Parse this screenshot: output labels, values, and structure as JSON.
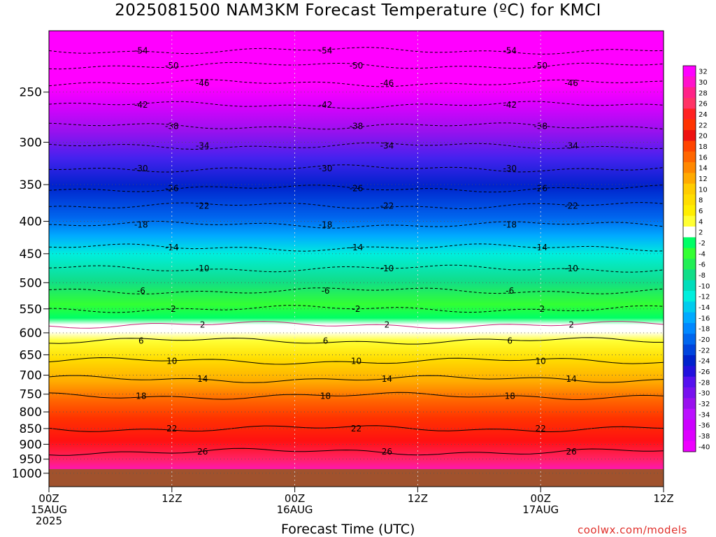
{
  "header": {
    "title": "2025081500 NAM3KM Forecast Temperature (ºC) for KMCI"
  },
  "footer": {
    "xlabel": "Forecast Time (UTC)",
    "watermark": "coolwx.com/models"
  },
  "chart_data": {
    "type": "heatmap",
    "title": "2025081500 NAM3KM Forecast Temperature (ºC) for KMCI",
    "xlabel": "Forecast Time (UTC)",
    "ylabel": "",
    "y_scale": "log-pressure (inverted)",
    "y_unit": "hPa",
    "ylim": [
      1050,
      200
    ],
    "xlim": [
      "2025-08-15T00Z",
      "2025-08-17T12Z"
    ],
    "grid": true,
    "x_ticks": [
      {
        "lines": [
          "00Z",
          "15AUG",
          "2025"
        ],
        "hour": 0
      },
      {
        "lines": [
          "12Z"
        ],
        "hour": 12
      },
      {
        "lines": [
          "00Z",
          "16AUG"
        ],
        "hour": 24
      },
      {
        "lines": [
          "12Z"
        ],
        "hour": 36
      },
      {
        "lines": [
          "00Z",
          "17AUG"
        ],
        "hour": 48
      },
      {
        "lines": [
          "12Z"
        ],
        "hour": 60
      }
    ],
    "y_ticks": [
      250,
      300,
      350,
      400,
      450,
      500,
      550,
      600,
      650,
      700,
      750,
      800,
      850,
      900,
      950,
      1000
    ],
    "colorbar": {
      "position": "right",
      "labels": [
        "32",
        "30",
        "28",
        "26",
        "24",
        "22",
        "20",
        "18",
        "16",
        "14",
        "12",
        "10",
        "8",
        "6",
        "4",
        "2",
        "-2",
        "-4",
        "-6",
        "-8",
        "-10",
        "-12",
        "-14",
        "-16",
        "-18",
        "-20",
        "-22",
        "-24",
        "-26",
        "-28",
        "-30",
        "-32",
        "-34",
        "-36",
        "-38",
        "-40"
      ],
      "colors": [
        "#ff00ff",
        "#ff11cc",
        "#ff2288",
        "#ff3366",
        "#ff2222",
        "#ff3300",
        "#ee1111",
        "#ff4400",
        "#ff6600",
        "#ff8800",
        "#ffaa00",
        "#ffcc00",
        "#ffdd00",
        "#ffee00",
        "#ffff33",
        "#ffffff",
        "#00ff66",
        "#33ff33",
        "#22ee55",
        "#11dd88",
        "#00ddbb",
        "#00eedd",
        "#00ccee",
        "#00aaff",
        "#0088ff",
        "#0066ee",
        "#0044dd",
        "#0022cc",
        "#2211dd",
        "#5511ee",
        "#7711ee",
        "#9911ee",
        "#bb11ff",
        "#cc00ff",
        "#dd00ff",
        "#ee00ff"
      ]
    },
    "isotherms": [
      {
        "label": "-54",
        "p": 215,
        "t": [
          5,
          10,
          15,
          20,
          25,
          30,
          35,
          40,
          45,
          50,
          55,
          60
        ],
        "dp": [
          0,
          0,
          1,
          0,
          0,
          0,
          0,
          1,
          0,
          -1,
          -2,
          -1
        ]
      },
      {
        "label": "-50",
        "p": 227
      },
      {
        "label": "-46",
        "p": 242
      },
      {
        "label": "-42",
        "p": 262
      },
      {
        "label": "-38",
        "p": 283
      },
      {
        "label": "-34",
        "p": 304
      },
      {
        "label": "-30",
        "p": 330
      },
      {
        "label": "-26",
        "p": 355
      },
      {
        "label": "-22",
        "p": 378
      },
      {
        "label": "-18",
        "p": 405
      },
      {
        "label": "-14",
        "p": 440
      },
      {
        "label": "-10",
        "p": 475
      },
      {
        "label": "-6",
        "p": 515
      },
      {
        "label": "-2",
        "p": 550
      },
      {
        "label": "2",
        "p": 583
      },
      {
        "label": "6",
        "p": 618
      },
      {
        "label": "10",
        "p": 665
      },
      {
        "label": "14",
        "p": 710
      },
      {
        "label": "18",
        "p": 755
      },
      {
        "label": "22",
        "p": 850
      },
      {
        "label": "26",
        "p": 925
      }
    ],
    "surface_pressure": 985
  }
}
